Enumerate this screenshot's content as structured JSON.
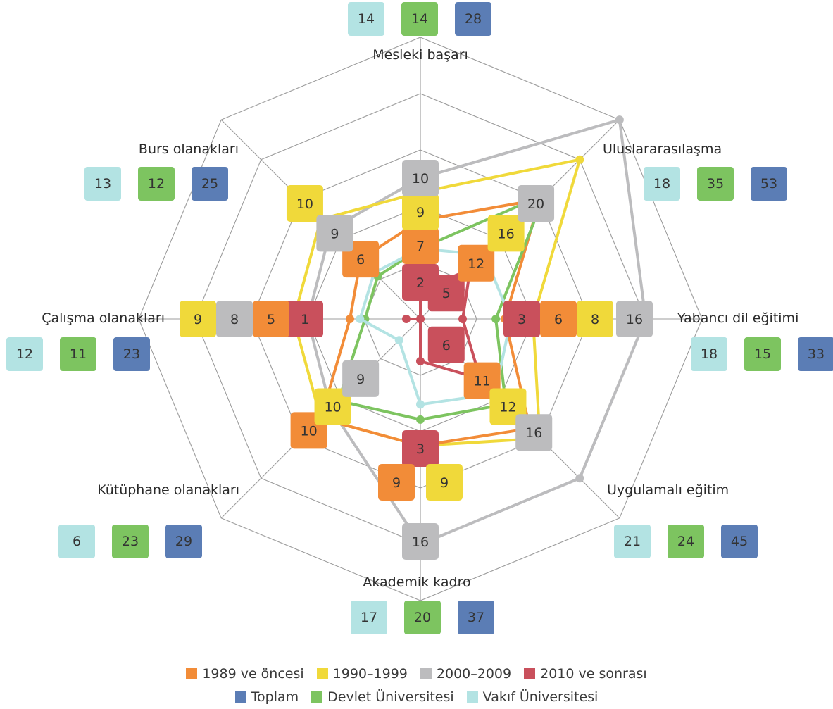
{
  "chart_data": {
    "type": "radar",
    "axes": [
      {
        "key": "mesleki",
        "label": "Mesleki başarı"
      },
      {
        "key": "ulus",
        "label": "Uluslararasılaşma"
      },
      {
        "key": "yabanci",
        "label": "Yabancı dil eğitimi"
      },
      {
        "key": "uygulamali",
        "label": "Uygulamalı eğitim"
      },
      {
        "key": "akademik",
        "label": "Akademik kadro"
      },
      {
        "key": "kutuphane",
        "label": "Kütüphane olanakları"
      },
      {
        "key": "calisma",
        "label": "Çalışma olanakları"
      },
      {
        "key": "burs",
        "label": "Burs olanakları"
      }
    ],
    "rmax": 20,
    "grid_levels": [
      4,
      8,
      12,
      16,
      20
    ],
    "series": [
      {
        "name": "1989 ve öncesi",
        "color": "#f28c38",
        "values": [
          7,
          12,
          6,
          11,
          9,
          10,
          5,
          6
        ]
      },
      {
        "name": "1990–1999",
        "color": "#f0d93a",
        "values": [
          9,
          16,
          8,
          12,
          9,
          10,
          9,
          10
        ]
      },
      {
        "name": "2000–2009",
        "color": "#bcbcbe",
        "values": [
          10,
          20,
          16,
          16,
          16,
          9,
          8,
          9
        ]
      },
      {
        "name": "2010 ve sonrası",
        "color": "#c9505c",
        "values": [
          2,
          5,
          3,
          6,
          3,
          0,
          1,
          0
        ]
      },
      {
        "name": "Toplam",
        "color": "#5b7db5",
        "values": [
          28,
          53,
          33,
          45,
          37,
          29,
          23,
          25
        ]
      },
      {
        "name": "Devlet Üniversitesi",
        "color": "#7dc460",
        "values": [
          14,
          35,
          15,
          24,
          20,
          23,
          11,
          12
        ]
      },
      {
        "name": "Vakıf Üniversitesi",
        "color": "#b3e3e3",
        "values": [
          14,
          18,
          18,
          21,
          17,
          6,
          12,
          13
        ]
      }
    ],
    "legend": {
      "placement": "bottom",
      "rows": [
        [
          "1989 ve öncesi",
          "1990–1999",
          "2000–2009",
          "2010 ve sonrası"
        ],
        [
          "Toplam",
          "Devlet Üniversitesi",
          "Vakıf Üniversitesi"
        ]
      ]
    }
  }
}
